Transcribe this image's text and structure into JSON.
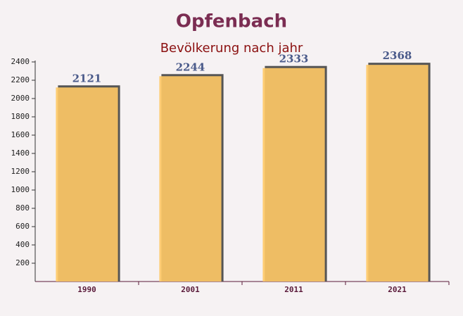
{
  "chart_data": {
    "type": "bar",
    "title": "Opfenbach",
    "subtitle": "Bevölkerung nach jahr",
    "categories": [
      "1990",
      "2001",
      "2011",
      "2021"
    ],
    "values": [
      2121,
      2244,
      2333,
      2368
    ],
    "color": "#ffc966",
    "ylim": [
      0,
      2400
    ],
    "yticks": [
      200,
      400,
      600,
      800,
      1000,
      1200,
      1400,
      1600,
      1800,
      2000,
      2200,
      2400
    ],
    "grid": false
  }
}
